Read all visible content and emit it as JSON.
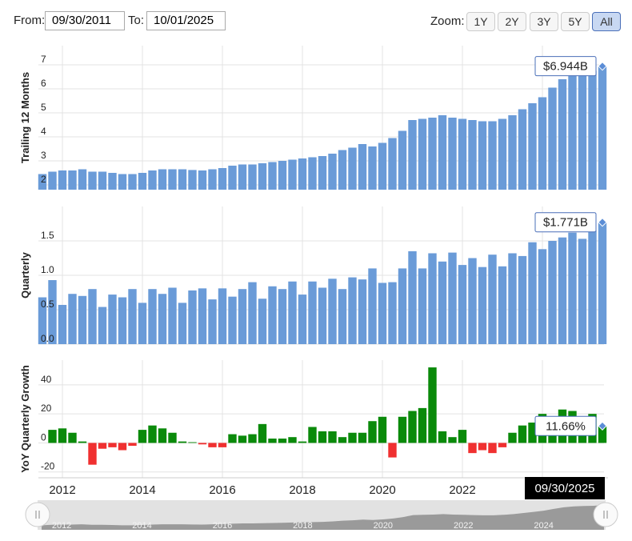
{
  "controls": {
    "from_label": "From:",
    "from_date": "09/30/2011",
    "to_label": "To:",
    "to_date": "10/01/2025",
    "zoom_label": "Zoom:",
    "zoom_buttons": [
      "1Y",
      "2Y",
      "3Y",
      "5Y",
      "All"
    ],
    "active_zoom": "All",
    "crosshair_date": "09/30/2025"
  },
  "chart_data": [
    {
      "type": "bar",
      "y_label": "Trailing 12 Months",
      "color": "#6a9bd8",
      "ylim": [
        1.8,
        7.8
      ],
      "yticks": [
        2,
        3,
        4,
        5,
        6,
        7
      ],
      "grid": true,
      "annotation": "$6.944B",
      "x": [
        2011.5,
        2011.75,
        2012,
        2012.25,
        2012.5,
        2012.75,
        2013,
        2013.25,
        2013.5,
        2013.75,
        2014,
        2014.25,
        2014.5,
        2014.75,
        2015,
        2015.25,
        2015.5,
        2015.75,
        2016,
        2016.25,
        2016.5,
        2016.75,
        2017,
        2017.25,
        2017.5,
        2017.75,
        2018,
        2018.25,
        2018.5,
        2018.75,
        2019,
        2019.25,
        2019.5,
        2019.75,
        2020,
        2020.25,
        2020.5,
        2020.75,
        2021,
        2021.25,
        2021.5,
        2021.75,
        2022,
        2022.25,
        2022.5,
        2022.75,
        2023,
        2023.25,
        2023.5,
        2023.75,
        2024,
        2024.25,
        2024.5,
        2024.75,
        2025,
        2025.25,
        2025.5
      ],
      "xlim": [
        2011.4,
        2025.54
      ],
      "values": [
        2.45,
        2.55,
        2.6,
        2.6,
        2.65,
        2.55,
        2.55,
        2.5,
        2.45,
        2.45,
        2.5,
        2.6,
        2.65,
        2.65,
        2.65,
        2.62,
        2.6,
        2.65,
        2.7,
        2.8,
        2.85,
        2.85,
        2.9,
        2.95,
        3.0,
        3.05,
        3.1,
        3.15,
        3.2,
        3.3,
        3.45,
        3.55,
        3.7,
        3.6,
        3.75,
        3.95,
        4.25,
        4.7,
        4.75,
        4.8,
        4.9,
        4.8,
        4.75,
        4.7,
        4.65,
        4.65,
        4.75,
        4.9,
        5.15,
        5.4,
        5.65,
        6.05,
        6.4,
        6.6,
        6.7,
        6.75,
        6.944
      ]
    },
    {
      "type": "bar",
      "y_label": "Quarterly",
      "color": "#6a9bd8",
      "ylim": [
        0,
        2.0
      ],
      "yticks": [
        {
          "value": 0,
          "label": "0.0"
        },
        0.5,
        {
          "value": 1,
          "label": "1.0"
        },
        1.5
      ],
      "grid": true,
      "annotation": "$1.771B",
      "values": [
        0.68,
        0.93,
        0.57,
        0.73,
        0.7,
        0.8,
        0.54,
        0.72,
        0.68,
        0.8,
        0.6,
        0.8,
        0.73,
        0.82,
        0.6,
        0.78,
        0.81,
        0.65,
        0.81,
        0.69,
        0.8,
        0.9,
        0.66,
        0.84,
        0.8,
        0.91,
        0.72,
        0.91,
        0.82,
        0.95,
        0.8,
        0.97,
        0.94,
        1.1,
        0.89,
        0.9,
        1.1,
        1.35,
        1.1,
        1.32,
        1.2,
        1.33,
        1.15,
        1.25,
        1.12,
        1.3,
        1.13,
        1.32,
        1.28,
        1.48,
        1.38,
        1.5,
        1.55,
        1.62,
        1.53,
        1.65,
        1.771
      ]
    },
    {
      "type": "bar",
      "y_label": "YoY Quarterly Growth",
      "color": "#0a8a0a",
      "negative_color": "#f03030",
      "ylim": [
        -24,
        57
      ],
      "yticks": [
        -20,
        0,
        20,
        40
      ],
      "grid": true,
      "annotation": "11.66%",
      "xticks": [
        2012,
        2014,
        2016,
        2018,
        2020,
        2022,
        2024
      ],
      "values": [
        null,
        9,
        10,
        7,
        1,
        -15,
        -4,
        -3,
        -5,
        -2,
        9,
        12,
        10,
        7,
        1,
        0.5,
        -1,
        -3,
        -3,
        6,
        5,
        6,
        13,
        3,
        3,
        4,
        1,
        11,
        8,
        8,
        4,
        7,
        7,
        15,
        18,
        -10,
        18,
        22,
        24,
        52,
        8,
        4,
        9,
        -7,
        -5,
        -7,
        -3,
        7,
        12,
        14,
        20,
        13,
        23,
        22,
        15,
        20,
        11.66
      ]
    }
  ]
}
